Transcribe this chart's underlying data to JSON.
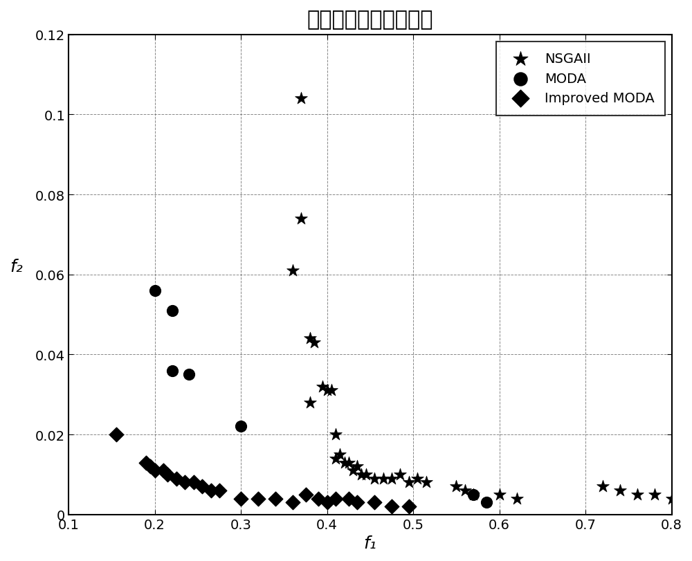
{
  "title": "连退过程鲁棒优化前沿",
  "xlabel": "f₁",
  "ylabel": "f₂",
  "xlim": [
    0.1,
    0.8
  ],
  "ylim": [
    0.0,
    0.12
  ],
  "xticks": [
    0.1,
    0.2,
    0.3,
    0.4,
    0.5,
    0.6,
    0.7,
    0.8
  ],
  "yticks": [
    0.0,
    0.02,
    0.04,
    0.06,
    0.08,
    0.1,
    0.12
  ],
  "ytick_labels": [
    "0",
    "0.02",
    "0.04",
    "0.06",
    "0.08",
    "0.1",
    "0.12"
  ],
  "nsgaii_x": [
    0.37,
    0.37,
    0.36,
    0.38,
    0.385,
    0.38,
    0.395,
    0.405,
    0.4,
    0.41,
    0.415,
    0.41,
    0.42,
    0.425,
    0.435,
    0.43,
    0.44,
    0.445,
    0.455,
    0.465,
    0.475,
    0.485,
    0.495,
    0.505,
    0.515,
    0.55,
    0.56,
    0.57,
    0.6,
    0.62,
    0.72,
    0.74,
    0.76,
    0.78,
    0.8
  ],
  "nsgaii_y": [
    0.104,
    0.074,
    0.061,
    0.044,
    0.043,
    0.028,
    0.032,
    0.031,
    0.031,
    0.02,
    0.015,
    0.014,
    0.013,
    0.013,
    0.012,
    0.011,
    0.01,
    0.01,
    0.009,
    0.009,
    0.009,
    0.01,
    0.008,
    0.009,
    0.008,
    0.007,
    0.006,
    0.005,
    0.005,
    0.004,
    0.007,
    0.006,
    0.005,
    0.005,
    0.004
  ],
  "moda_x": [
    0.2,
    0.22,
    0.22,
    0.24,
    0.3,
    0.57,
    0.585
  ],
  "moda_y": [
    0.056,
    0.051,
    0.036,
    0.035,
    0.022,
    0.005,
    0.003
  ],
  "imoda_x": [
    0.155,
    0.19,
    0.195,
    0.2,
    0.21,
    0.215,
    0.225,
    0.235,
    0.245,
    0.255,
    0.265,
    0.275,
    0.3,
    0.32,
    0.34,
    0.36,
    0.375,
    0.39,
    0.4,
    0.41,
    0.425,
    0.435,
    0.455,
    0.475,
    0.495
  ],
  "imoda_y": [
    0.02,
    0.013,
    0.012,
    0.011,
    0.011,
    0.01,
    0.009,
    0.008,
    0.008,
    0.007,
    0.006,
    0.006,
    0.004,
    0.004,
    0.004,
    0.003,
    0.005,
    0.004,
    0.003,
    0.004,
    0.004,
    0.003,
    0.003,
    0.002,
    0.002
  ],
  "background_color": "#ffffff",
  "marker_color": "#000000",
  "title_fontsize": 22,
  "label_fontsize": 18,
  "tick_fontsize": 14,
  "legend_fontsize": 14
}
